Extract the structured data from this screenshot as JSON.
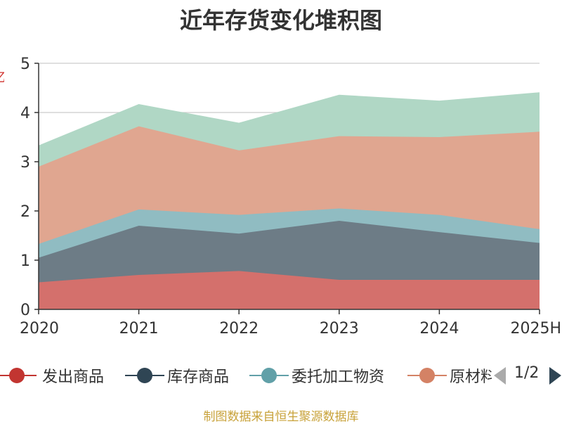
{
  "title": "近年存货变化堆积图",
  "source_note": "制图数据来自恒生聚源数据库",
  "legend_pager": "1/2",
  "chart_data": {
    "type": "area",
    "stacked": true,
    "title": "近年存货变化堆积图",
    "categories": [
      "2020",
      "2021",
      "2022",
      "2023",
      "2024",
      "2025H"
    ],
    "ylim": [
      0,
      5
    ],
    "y_ticks": [
      "0",
      "1",
      "2",
      "3",
      "4",
      "5"
    ],
    "grid": true,
    "legend_position": "bottom",
    "ylabel": "",
    "series": [
      {
        "name": "发出商品",
        "color": "#c23531",
        "fill": "#d4706c",
        "values": [
          0.55,
          0.7,
          0.78,
          0.6,
          0.6,
          0.6
        ]
      },
      {
        "name": "库存商品",
        "color": "#2f4554",
        "fill": "#6d7c86",
        "values": [
          0.5,
          1.0,
          0.76,
          1.2,
          0.97,
          0.75
        ]
      },
      {
        "name": "委托加工物资",
        "color": "#61a0a8",
        "fill": "#90bcc2",
        "values": [
          0.28,
          0.33,
          0.38,
          0.25,
          0.35,
          0.28
        ]
      },
      {
        "name": "原材料",
        "color": "#d48265",
        "fill": "#e0a690",
        "values": [
          1.57,
          1.69,
          1.31,
          1.47,
          1.58,
          1.98
        ]
      },
      {
        "name": "",
        "color": "#91c7ae",
        "fill": "#b0d7c5",
        "values": [
          0.42,
          0.44,
          0.55,
          0.83,
          0.73,
          0.79
        ]
      }
    ]
  }
}
